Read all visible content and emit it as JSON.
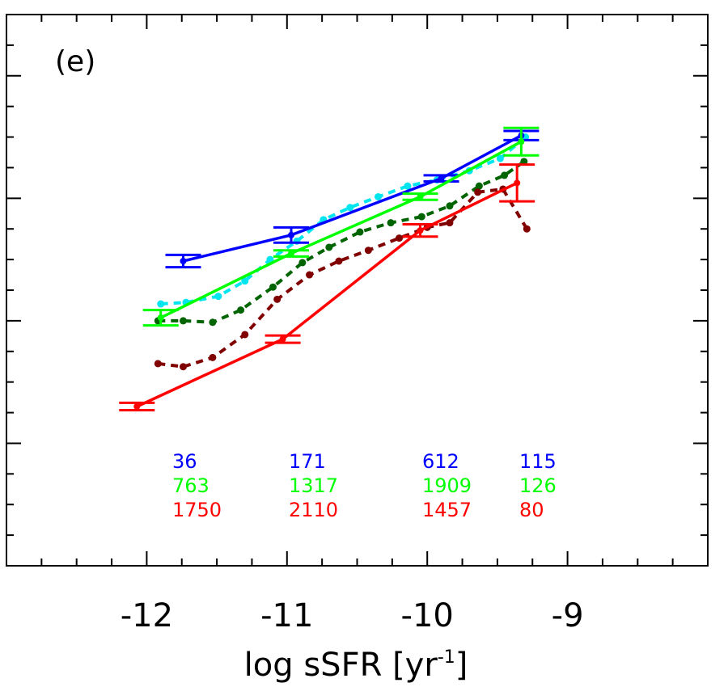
{
  "chart_data": {
    "type": "line",
    "panel_label": "(e)",
    "xlabel_main": "log sSFR [yr",
    "xlabel_sup": "-1",
    "xlabel_close": "]",
    "ylabel": "",
    "xlim": [
      -13.0,
      -8.0
    ],
    "xticks": [
      -12,
      -11,
      -10,
      -9
    ],
    "xtick_labels": [
      "-12",
      "-11",
      "-10",
      "-9"
    ],
    "ylim": [
      0,
      18
    ],
    "grid": false,
    "binned_series": [
      {
        "color": "#0000ff",
        "points": [
          {
            "x": -11.74,
            "y": 9.95,
            "yerr": 0.2
          },
          {
            "x": -10.97,
            "y": 10.8,
            "yerr": 0.25
          },
          {
            "x": -9.9,
            "y": 12.65,
            "yerr": 0.1
          },
          {
            "x": -9.33,
            "y": 14.05,
            "yerr": 0.15
          }
        ]
      },
      {
        "color": "#00ff00",
        "points": [
          {
            "x": -11.9,
            "y": 8.1,
            "yerr": 0.25
          },
          {
            "x": -10.97,
            "y": 10.2,
            "yerr": 0.1
          },
          {
            "x": -10.05,
            "y": 12.05,
            "yerr": 0.1
          },
          {
            "x": -9.33,
            "y": 13.85,
            "yerr": 0.45
          }
        ]
      },
      {
        "color": "#ff0000",
        "points": [
          {
            "x": -12.07,
            "y": 5.2,
            "yerr": 0.12
          },
          {
            "x": -11.03,
            "y": 7.4,
            "yerr": 0.12
          },
          {
            "x": -10.05,
            "y": 10.95,
            "yerr": 0.2
          },
          {
            "x": -9.36,
            "y": 12.5,
            "yerr": 0.6
          }
        ]
      }
    ],
    "dotted_series": [
      {
        "color": "#00e5ee",
        "x": [
          -11.9,
          -11.72,
          -11.49,
          -11.3,
          -11.12,
          -10.93,
          -10.74,
          -10.55,
          -10.35,
          -10.14,
          -9.93,
          -9.7,
          -9.48,
          -9.3
        ],
        "y": [
          8.55,
          8.6,
          8.8,
          9.3,
          10.0,
          10.6,
          11.3,
          11.7,
          12.05,
          12.4,
          12.6,
          12.9,
          13.3,
          14.0
        ]
      },
      {
        "color": "#006400",
        "x": [
          -11.92,
          -11.74,
          -11.53,
          -11.33,
          -11.1,
          -10.89,
          -10.7,
          -10.48,
          -10.26,
          -10.04,
          -9.84,
          -9.63,
          -9.45,
          -9.31
        ],
        "y": [
          8.0,
          8.0,
          7.95,
          8.35,
          9.1,
          9.9,
          10.4,
          10.9,
          11.2,
          11.4,
          11.75,
          12.4,
          12.75,
          13.2
        ]
      },
      {
        "color": "#800000",
        "x": [
          -11.92,
          -11.74,
          -11.53,
          -11.3,
          -11.07,
          -10.84,
          -10.63,
          -10.42,
          -10.2,
          -10.0,
          -9.84,
          -9.64,
          -9.46,
          -9.29
        ],
        "y": [
          6.6,
          6.5,
          6.8,
          7.55,
          8.7,
          9.5,
          9.95,
          10.3,
          10.7,
          11.05,
          11.2,
          12.2,
          12.3,
          11.0
        ]
      }
    ],
    "counts": [
      {
        "color": "#0000ff",
        "values": [
          "36",
          "171",
          "612",
          "115"
        ]
      },
      {
        "color": "#00ff00",
        "values": [
          "763",
          "1317",
          "1909",
          "126"
        ]
      },
      {
        "color": "#ff0000",
        "values": [
          "1750",
          "2110",
          "1457",
          "80"
        ]
      }
    ]
  }
}
